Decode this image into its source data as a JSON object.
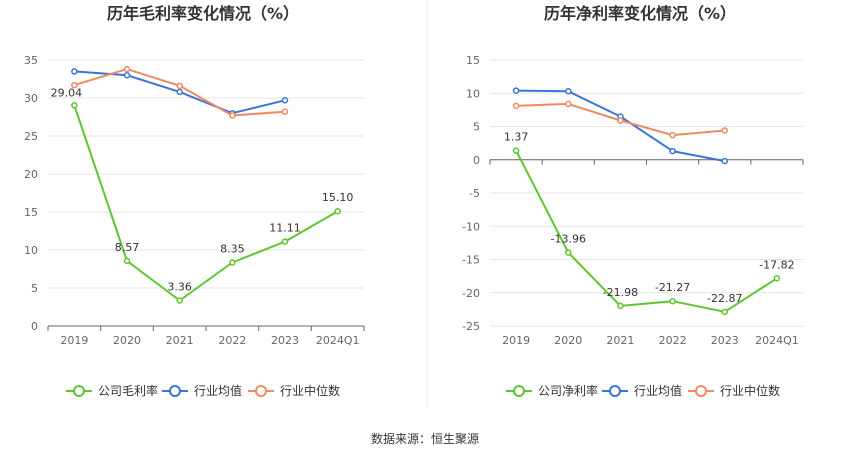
{
  "source_text": "数据来源：恒生聚源",
  "legend_labels": {
    "left": [
      "公司毛利率",
      "行业均值",
      "行业中位数"
    ],
    "right": [
      "公司净利率",
      "行业均值",
      "行业中位数"
    ]
  },
  "colors": {
    "company": "#5fc52e",
    "industry_avg": "#3a75d8",
    "industry_median": "#ef8a62",
    "grid": "#e6e6e6",
    "axis": "#666666",
    "divider": "#eeeeee"
  },
  "chart_data": [
    {
      "type": "line",
      "title": "历年毛利率变化情况（%）",
      "categories": [
        "2019",
        "2020",
        "2021",
        "2022",
        "2023",
        "2024Q1"
      ],
      "ylim": [
        0,
        35
      ],
      "yticks": [
        "0",
        "5",
        "10",
        "15",
        "20",
        "25",
        "30",
        "35"
      ],
      "grid": true,
      "legend_position": "bottom",
      "series": [
        {
          "name": "公司毛利率",
          "values": [
            29.04,
            8.57,
            3.36,
            8.35,
            11.11,
            15.1
          ],
          "labels": [
            "29.04",
            "8.57",
            "3.36",
            "8.35",
            "11.11",
            "15.10"
          ]
        },
        {
          "name": "行业均值",
          "values": [
            33.5,
            33.0,
            30.8,
            28.0,
            29.7,
            null
          ]
        },
        {
          "name": "行业中位数",
          "values": [
            31.7,
            33.8,
            31.6,
            27.7,
            28.2,
            null
          ]
        }
      ]
    },
    {
      "type": "line",
      "title": "历年净利率变化情况（%）",
      "categories": [
        "2019",
        "2020",
        "2021",
        "2022",
        "2023",
        "2024Q1"
      ],
      "ylim": [
        -25,
        15
      ],
      "yticks": [
        "-25",
        "-20",
        "-15",
        "-10",
        "-5",
        "0",
        "5",
        "10",
        "15"
      ],
      "grid": true,
      "legend_position": "bottom",
      "series": [
        {
          "name": "公司净利率",
          "values": [
            1.37,
            -13.96,
            -21.98,
            -21.27,
            -22.87,
            -17.82
          ],
          "labels": [
            "1.37",
            "-13.96",
            "-21.98",
            "-21.27",
            "-22.87",
            "-17.82"
          ]
        },
        {
          "name": "行业均值",
          "values": [
            10.4,
            10.3,
            6.5,
            1.3,
            -0.2,
            null
          ]
        },
        {
          "name": "行业中位数",
          "values": [
            8.1,
            8.4,
            5.9,
            3.7,
            4.4,
            null
          ]
        }
      ]
    }
  ]
}
